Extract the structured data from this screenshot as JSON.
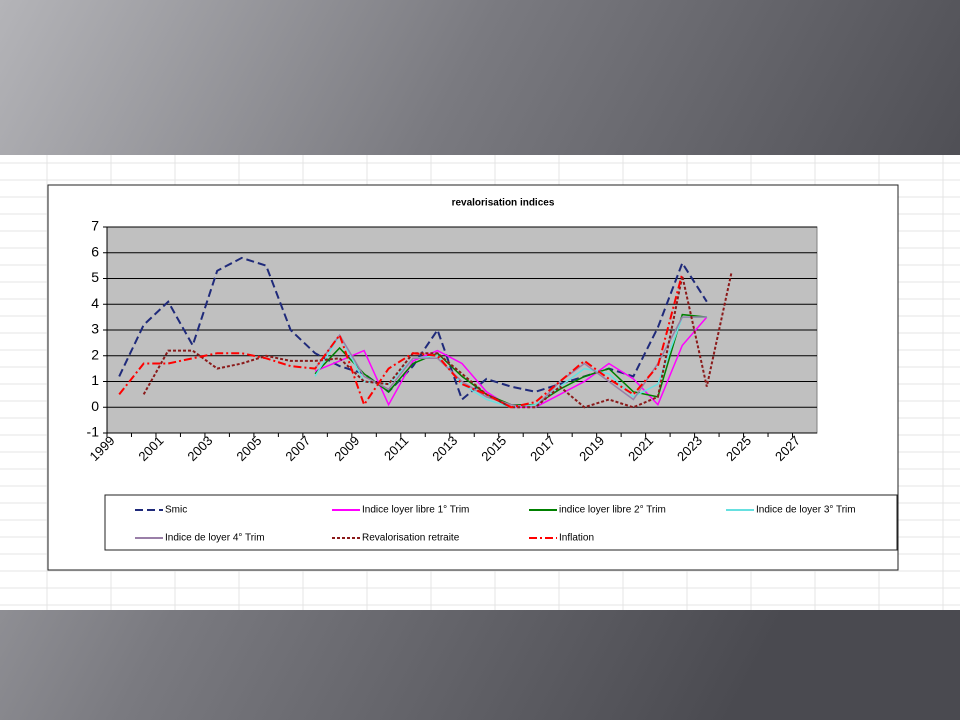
{
  "chart_data": {
    "type": "line",
    "title": "revalorisation indices",
    "categories": [
      "1999",
      null,
      "2001",
      null,
      "2003",
      null,
      "2005",
      null,
      "2007",
      null,
      "2009",
      null,
      "2011",
      null,
      "2013",
      null,
      "2015",
      null,
      "2017",
      null,
      "2019",
      null,
      "2021",
      null,
      "2023",
      null,
      "2025",
      null,
      "2027"
    ],
    "ylim": [
      -1,
      7
    ],
    "yticks": [
      -1,
      0,
      1,
      2,
      3,
      4,
      5,
      6,
      7
    ],
    "grid": true,
    "series": [
      {
        "name": "Smic",
        "color": "#1f2a7a",
        "style": "dashed",
        "values": [
          1.2,
          3.2,
          4.1,
          2.4,
          5.3,
          5.8,
          5.5,
          3.0,
          2.1,
          1.6,
          1.3,
          0.6,
          1.6,
          3.0,
          0.3,
          1.1,
          0.8,
          0.6,
          0.9,
          1.2,
          1.5,
          1.2,
          3.1,
          5.6,
          4.1,
          null,
          null,
          null,
          null
        ]
      },
      {
        "name": "Indice loyer libre 1° Trim",
        "color": "#ff00ff",
        "style": "solid",
        "values": [
          null,
          null,
          null,
          null,
          null,
          null,
          null,
          null,
          1.4,
          1.8,
          2.2,
          0.1,
          1.8,
          2.2,
          1.7,
          0.6,
          0.0,
          0.0,
          0.5,
          1.0,
          1.7,
          1.1,
          0.1,
          2.4,
          3.5,
          null,
          null,
          null,
          null
        ]
      },
      {
        "name": "indice loyer libre 2° Trim",
        "color": "#008000",
        "style": "solid",
        "values": [
          null,
          null,
          null,
          null,
          null,
          null,
          null,
          null,
          1.3,
          2.3,
          1.3,
          0.6,
          1.7,
          2.1,
          1.2,
          0.5,
          0.1,
          0.1,
          0.7,
          1.2,
          1.5,
          0.6,
          0.4,
          3.6,
          3.5,
          null,
          null,
          null,
          null
        ]
      },
      {
        "name": "Indice de loyer 3° Trim",
        "color": "#66e0e0",
        "style": "solid",
        "values": [
          null,
          null,
          null,
          null,
          null,
          null,
          null,
          null,
          1.2,
          2.8,
          1.0,
          0.9,
          1.9,
          2.0,
          0.9,
          0.3,
          0.0,
          0.1,
          0.8,
          1.5,
          1.3,
          0.4,
          0.9,
          3.5,
          3.5,
          null,
          null,
          null,
          null
        ]
      },
      {
        "name": "Indice de loyer 4° Trim",
        "color": "#9a7fa8",
        "style": "solid",
        "values": [
          null,
          null,
          null,
          null,
          null,
          null,
          null,
          null,
          1.5,
          2.8,
          1.2,
          0.7,
          1.9,
          1.9,
          1.0,
          0.4,
          0.1,
          0.0,
          1.0,
          1.7,
          1.0,
          0.3,
          1.7,
          3.5,
          3.5,
          null,
          null,
          null,
          null
        ]
      },
      {
        "name": "Revalorisation retraite",
        "color": "#8b1a1a",
        "style": "dotted",
        "values": [
          null,
          0.5,
          2.2,
          2.2,
          1.5,
          1.7,
          2.0,
          1.8,
          1.8,
          1.9,
          1.0,
          0.9,
          2.1,
          2.1,
          1.3,
          0.5,
          0.0,
          0.0,
          0.8,
          0.0,
          0.3,
          0.0,
          0.4,
          5.1,
          0.8,
          5.2,
          null,
          null,
          null
        ]
      },
      {
        "name": "Inflation",
        "color": "#ff0000",
        "style": "dashdot",
        "values": [
          0.5,
          1.7,
          1.7,
          1.9,
          2.1,
          2.1,
          1.9,
          1.6,
          1.5,
          2.8,
          0.1,
          1.5,
          2.1,
          2.0,
          0.9,
          0.5,
          0.0,
          0.2,
          1.0,
          1.8,
          1.1,
          0.5,
          1.6,
          5.2,
          null,
          null,
          null,
          null,
          null
        ]
      }
    ]
  }
}
